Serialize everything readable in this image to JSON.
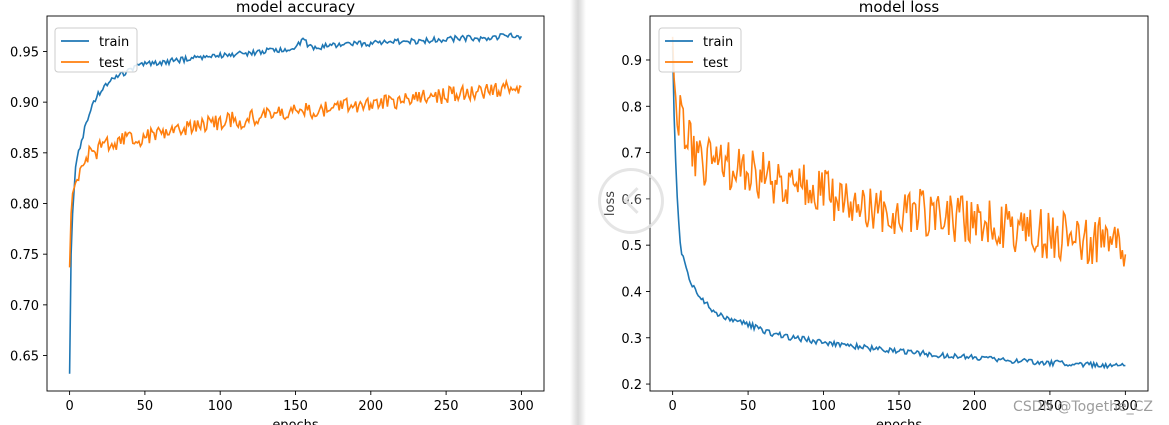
{
  "colors": {
    "train": "#1f77b4",
    "test": "#ff7f0e"
  },
  "watermark": "CSDN @Togethe_CZ",
  "chart_data": [
    {
      "type": "line",
      "title": "model accuracy",
      "xlabel": "epochs",
      "ylabel": "",
      "xlim": [
        -15,
        315
      ],
      "ylim": [
        0.615,
        0.985
      ],
      "xticks": [
        0,
        50,
        100,
        150,
        200,
        250,
        300
      ],
      "yticks": [
        0.65,
        0.7,
        0.75,
        0.8,
        0.85,
        0.9,
        0.95
      ],
      "ytick_labels": [
        "0.65",
        "0.70",
        "0.75",
        "0.80",
        "0.85",
        "0.90",
        "0.95"
      ],
      "legend": {
        "placement": "top-left",
        "entries": [
          "train",
          "test"
        ]
      },
      "grid": false,
      "series": [
        {
          "name": "train",
          "color": "#1f77b4",
          "x": [
            0,
            1,
            2,
            3,
            4,
            5,
            6,
            8,
            10,
            12,
            15,
            18,
            20,
            25,
            30,
            35,
            40,
            45,
            50,
            55,
            60,
            70,
            80,
            90,
            100,
            110,
            120,
            130,
            140,
            150,
            155,
            160,
            170,
            180,
            190,
            200,
            210,
            220,
            230,
            240,
            250,
            260,
            270,
            280,
            290,
            295,
            300
          ],
          "y": [
            0.632,
            0.75,
            0.79,
            0.815,
            0.835,
            0.845,
            0.85,
            0.86,
            0.875,
            0.885,
            0.895,
            0.905,
            0.91,
            0.918,
            0.925,
            0.928,
            0.932,
            0.935,
            0.937,
            0.938,
            0.939,
            0.941,
            0.943,
            0.945,
            0.946,
            0.947,
            0.948,
            0.95,
            0.952,
            0.953,
            0.962,
            0.954,
            0.955,
            0.956,
            0.957,
            0.958,
            0.959,
            0.96,
            0.96,
            0.961,
            0.962,
            0.963,
            0.963,
            0.964,
            0.965,
            0.966,
            0.965
          ]
        },
        {
          "name": "test",
          "color": "#ff7f0e",
          "x": [
            0,
            1,
            2,
            3,
            4,
            5,
            6,
            8,
            10,
            12,
            15,
            18,
            20,
            25,
            30,
            35,
            40,
            45,
            50,
            55,
            60,
            65,
            70,
            75,
            80,
            85,
            90,
            95,
            100,
            105,
            110,
            115,
            120,
            125,
            130,
            135,
            140,
            145,
            150,
            155,
            160,
            165,
            170,
            175,
            180,
            185,
            190,
            195,
            200,
            205,
            210,
            215,
            220,
            225,
            230,
            235,
            240,
            245,
            250,
            255,
            260,
            265,
            270,
            275,
            280,
            285,
            290,
            295,
            300
          ],
          "y": [
            0.737,
            0.79,
            0.81,
            0.82,
            0.815,
            0.825,
            0.83,
            0.835,
            0.84,
            0.845,
            0.855,
            0.85,
            0.855,
            0.86,
            0.855,
            0.862,
            0.865,
            0.86,
            0.866,
            0.868,
            0.87,
            0.872,
            0.874,
            0.875,
            0.876,
            0.874,
            0.878,
            0.88,
            0.879,
            0.882,
            0.883,
            0.88,
            0.885,
            0.884,
            0.886,
            0.887,
            0.889,
            0.887,
            0.89,
            0.892,
            0.891,
            0.894,
            0.893,
            0.895,
            0.896,
            0.897,
            0.896,
            0.9,
            0.898,
            0.9,
            0.901,
            0.902,
            0.9,
            0.904,
            0.903,
            0.905,
            0.906,
            0.905,
            0.907,
            0.908,
            0.909,
            0.91,
            0.908,
            0.911,
            0.912,
            0.913,
            0.914,
            0.915,
            0.915
          ]
        }
      ]
    },
    {
      "type": "line",
      "title": "model loss",
      "xlabel": "epochs",
      "ylabel": "loss",
      "xlim": [
        -15,
        315
      ],
      "ylim": [
        0.185,
        0.995
      ],
      "xticks": [
        0,
        50,
        100,
        150,
        200,
        250,
        300
      ],
      "yticks": [
        0.2,
        0.3,
        0.4,
        0.5,
        0.6,
        0.7,
        0.8,
        0.9
      ],
      "ytick_labels": [
        "0.2",
        "0.3",
        "0.4",
        "0.5",
        "0.6",
        "0.7",
        "0.8",
        "0.9"
      ],
      "legend": {
        "placement": "top-left",
        "entries": [
          "train",
          "test"
        ]
      },
      "grid": false,
      "series": [
        {
          "name": "train",
          "color": "#1f77b4",
          "x": [
            0,
            1,
            2,
            3,
            4,
            5,
            6,
            8,
            10,
            12,
            15,
            18,
            20,
            25,
            30,
            35,
            40,
            45,
            50,
            55,
            60,
            65,
            70,
            75,
            80,
            90,
            100,
            110,
            120,
            130,
            140,
            150,
            160,
            170,
            180,
            190,
            200,
            210,
            220,
            230,
            240,
            250,
            260,
            270,
            280,
            290,
            295,
            300
          ],
          "y": [
            0.93,
            0.78,
            0.68,
            0.6,
            0.55,
            0.51,
            0.48,
            0.465,
            0.44,
            0.42,
            0.4,
            0.39,
            0.38,
            0.365,
            0.35,
            0.345,
            0.34,
            0.335,
            0.33,
            0.322,
            0.315,
            0.31,
            0.307,
            0.303,
            0.3,
            0.295,
            0.29,
            0.285,
            0.282,
            0.278,
            0.275,
            0.272,
            0.268,
            0.265,
            0.262,
            0.26,
            0.258,
            0.255,
            0.252,
            0.25,
            0.248,
            0.246,
            0.245,
            0.243,
            0.242,
            0.24,
            0.238,
            0.24
          ]
        },
        {
          "name": "test",
          "color": "#ff7f0e",
          "x": [
            0,
            1,
            2,
            3,
            4,
            5,
            6,
            8,
            10,
            12,
            15,
            18,
            20,
            25,
            30,
            35,
            40,
            45,
            50,
            55,
            60,
            65,
            70,
            75,
            80,
            85,
            90,
            95,
            100,
            105,
            110,
            115,
            120,
            125,
            130,
            135,
            140,
            145,
            150,
            155,
            160,
            165,
            170,
            175,
            180,
            185,
            190,
            195,
            200,
            205,
            210,
            215,
            220,
            225,
            230,
            235,
            240,
            245,
            250,
            255,
            260,
            265,
            270,
            275,
            280,
            285,
            290,
            295,
            300
          ],
          "y": [
            0.95,
            0.86,
            0.82,
            0.79,
            0.78,
            0.77,
            0.76,
            0.74,
            0.72,
            0.71,
            0.7,
            0.69,
            0.685,
            0.68,
            0.675,
            0.67,
            0.665,
            0.66,
            0.655,
            0.65,
            0.648,
            0.645,
            0.64,
            0.635,
            0.63,
            0.625,
            0.62,
            0.615,
            0.61,
            0.605,
            0.6,
            0.598,
            0.595,
            0.59,
            0.588,
            0.585,
            0.58,
            0.578,
            0.575,
            0.572,
            0.57,
            0.567,
            0.565,
            0.562,
            0.56,
            0.557,
            0.555,
            0.552,
            0.55,
            0.547,
            0.545,
            0.542,
            0.54,
            0.537,
            0.535,
            0.532,
            0.53,
            0.527,
            0.525,
            0.522,
            0.52,
            0.517,
            0.515,
            0.512,
            0.51,
            0.507,
            0.505,
            0.5,
            0.48
          ]
        }
      ]
    }
  ]
}
